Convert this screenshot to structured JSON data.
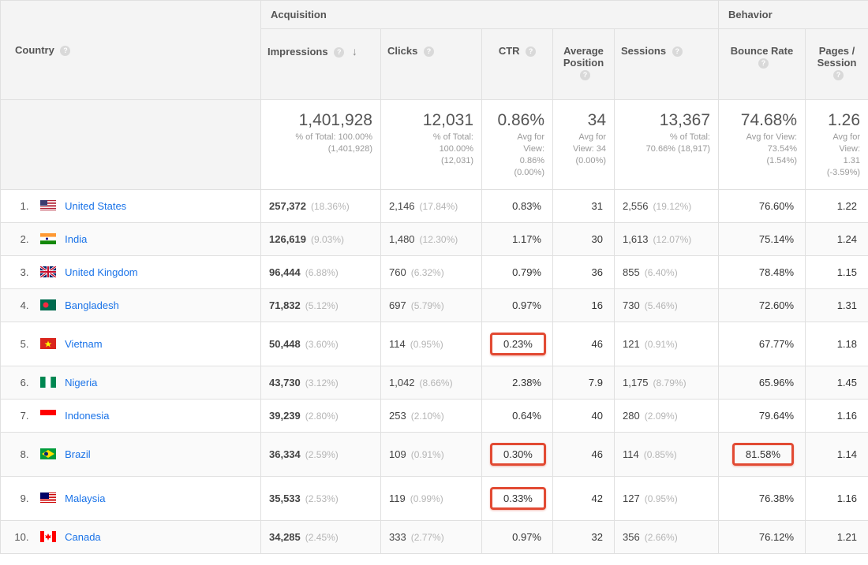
{
  "headers": {
    "country": "Country",
    "groups": {
      "acquisition": "Acquisition",
      "behavior": "Behavior"
    },
    "cols": {
      "impressions": "Impressions",
      "clicks": "Clicks",
      "ctr": "CTR",
      "avg_position": "Average Position",
      "sessions": "Sessions",
      "bounce_rate": "Bounce Rate",
      "pages_session": "Pages / Session"
    },
    "help_glyph": "?",
    "sort_arrow": "↓"
  },
  "summary": {
    "impressions": {
      "value": "1,401,928",
      "sub1": "% of Total: 100.00%",
      "sub2": "(1,401,928)"
    },
    "clicks": {
      "value": "12,031",
      "sub1": "% of Total:",
      "sub2": "100.00%",
      "sub3": "(12,031)"
    },
    "ctr": {
      "value": "0.86%",
      "sub1": "Avg for",
      "sub2": "View:",
      "sub3": "0.86%",
      "sub4": "(0.00%)"
    },
    "avg_pos": {
      "value": "34",
      "sub1": "Avg for",
      "sub2": "View: 34",
      "sub3": "(0.00%)"
    },
    "sessions": {
      "value": "13,367",
      "sub1": "% of Total:",
      "sub2": "70.66% (18,917)"
    },
    "bounce": {
      "value": "74.68%",
      "sub1": "Avg for View:",
      "sub2": "73.54%",
      "sub3": "(1.54%)"
    },
    "pages": {
      "value": "1.26",
      "sub1": "Avg for",
      "sub2": "View:",
      "sub3": "1.31",
      "sub4": "(-3.59%)"
    }
  },
  "rows": [
    {
      "n": "1.",
      "country": "United States",
      "impressions": "257,372",
      "imp_pct": "(18.36%)",
      "clicks": "2,146",
      "clk_pct": "(17.84%)",
      "ctr": "0.83%",
      "ctr_hi": false,
      "avg": "31",
      "sessions": "2,556",
      "sess_pct": "(19.12%)",
      "bounce": "76.60%",
      "bounce_hi": false,
      "pages": "1.22"
    },
    {
      "n": "2.",
      "country": "India",
      "impressions": "126,619",
      "imp_pct": "(9.03%)",
      "clicks": "1,480",
      "clk_pct": "(12.30%)",
      "ctr": "1.17%",
      "ctr_hi": false,
      "avg": "30",
      "sessions": "1,613",
      "sess_pct": "(12.07%)",
      "bounce": "75.14%",
      "bounce_hi": false,
      "pages": "1.24"
    },
    {
      "n": "3.",
      "country": "United Kingdom",
      "impressions": "96,444",
      "imp_pct": "(6.88%)",
      "clicks": "760",
      "clk_pct": "(6.32%)",
      "ctr": "0.79%",
      "ctr_hi": false,
      "avg": "36",
      "sessions": "855",
      "sess_pct": "(6.40%)",
      "bounce": "78.48%",
      "bounce_hi": false,
      "pages": "1.15"
    },
    {
      "n": "4.",
      "country": "Bangladesh",
      "impressions": "71,832",
      "imp_pct": "(5.12%)",
      "clicks": "697",
      "clk_pct": "(5.79%)",
      "ctr": "0.97%",
      "ctr_hi": false,
      "avg": "16",
      "sessions": "730",
      "sess_pct": "(5.46%)",
      "bounce": "72.60%",
      "bounce_hi": false,
      "pages": "1.31"
    },
    {
      "n": "5.",
      "country": "Vietnam",
      "impressions": "50,448",
      "imp_pct": "(3.60%)",
      "clicks": "114",
      "clk_pct": "(0.95%)",
      "ctr": "0.23%",
      "ctr_hi": true,
      "avg": "46",
      "sessions": "121",
      "sess_pct": "(0.91%)",
      "bounce": "67.77%",
      "bounce_hi": false,
      "pages": "1.18"
    },
    {
      "n": "6.",
      "country": "Nigeria",
      "impressions": "43,730",
      "imp_pct": "(3.12%)",
      "clicks": "1,042",
      "clk_pct": "(8.66%)",
      "ctr": "2.38%",
      "ctr_hi": false,
      "avg": "7.9",
      "sessions": "1,175",
      "sess_pct": "(8.79%)",
      "bounce": "65.96%",
      "bounce_hi": false,
      "pages": "1.45"
    },
    {
      "n": "7.",
      "country": "Indonesia",
      "impressions": "39,239",
      "imp_pct": "(2.80%)",
      "clicks": "253",
      "clk_pct": "(2.10%)",
      "ctr": "0.64%",
      "ctr_hi": false,
      "avg": "40",
      "sessions": "280",
      "sess_pct": "(2.09%)",
      "bounce": "79.64%",
      "bounce_hi": false,
      "pages": "1.16"
    },
    {
      "n": "8.",
      "country": "Brazil",
      "impressions": "36,334",
      "imp_pct": "(2.59%)",
      "clicks": "109",
      "clk_pct": "(0.91%)",
      "ctr": "0.30%",
      "ctr_hi": true,
      "avg": "46",
      "sessions": "114",
      "sess_pct": "(0.85%)",
      "bounce": "81.58%",
      "bounce_hi": true,
      "pages": "1.14"
    },
    {
      "n": "9.",
      "country": "Malaysia",
      "impressions": "35,533",
      "imp_pct": "(2.53%)",
      "clicks": "119",
      "clk_pct": "(0.99%)",
      "ctr": "0.33%",
      "ctr_hi": true,
      "avg": "42",
      "sessions": "127",
      "sess_pct": "(0.95%)",
      "bounce": "76.38%",
      "bounce_hi": false,
      "pages": "1.16"
    },
    {
      "n": "10.",
      "country": "Canada",
      "impressions": "34,285",
      "imp_pct": "(2.45%)",
      "clicks": "333",
      "clk_pct": "(2.77%)",
      "ctr": "0.97%",
      "ctr_hi": false,
      "avg": "32",
      "sessions": "356",
      "sess_pct": "(2.66%)",
      "bounce": "76.12%",
      "bounce_hi": false,
      "pages": "1.21"
    }
  ],
  "flags": {
    "United States": [
      [
        "#b22234",
        0,
        1
      ],
      [
        "#ffffff",
        1,
        1
      ],
      [
        "#b22234",
        2,
        1
      ],
      [
        "#ffffff",
        3,
        1
      ],
      [
        "#b22234",
        4,
        1
      ],
      [
        "#ffffff",
        5,
        1
      ],
      [
        "#b22234",
        6,
        1
      ],
      [
        "#ffffff",
        7,
        1
      ],
      [
        "#b22234",
        8,
        1
      ],
      [
        "#ffffff",
        9,
        1
      ],
      [
        "#b22234",
        10,
        1
      ],
      [
        "#ffffff",
        11,
        1
      ],
      [
        "#b22234",
        12,
        1
      ],
      [
        "#3c3b6e",
        0,
        7,
        0,
        9
      ]
    ],
    "India": [
      [
        "#ff9933",
        0,
        4.7
      ],
      [
        "#ffffff",
        4.7,
        4.6
      ],
      [
        "#138808",
        9.3,
        4.7
      ],
      [
        "#000080",
        5.5,
        3,
        8.5,
        3,
        "circle"
      ]
    ],
    "United Kingdom": [
      [
        "#012169",
        0,
        14
      ],
      [
        "#ffffff",
        5.5,
        3
      ],
      [
        "#c8102e",
        6.2,
        1.6
      ],
      [
        "#ffffff",
        0,
        14,
        8.5,
        3,
        "v"
      ],
      [
        "#c8102e",
        0,
        14,
        9.2,
        1.6,
        "v"
      ]
    ],
    "Bangladesh": [
      [
        "#006a4e",
        0,
        14
      ],
      [
        "#f42a41",
        3.5,
        7,
        7,
        7,
        "circle"
      ]
    ],
    "Vietnam": [
      [
        "#da251d",
        0,
        14
      ],
      [
        "#ffff00",
        5,
        5,
        7.5,
        5,
        "star"
      ]
    ],
    "Nigeria": [
      [
        "#008751",
        0,
        14,
        0,
        6.7,
        "v"
      ],
      [
        "#ffffff",
        0,
        14,
        6.7,
        6.6,
        "v"
      ],
      [
        "#008751",
        0,
        14,
        13.3,
        6.7,
        "v"
      ]
    ],
    "Indonesia": [
      [
        "#ff0000",
        0,
        7
      ],
      [
        "#ffffff",
        7,
        7
      ]
    ],
    "Brazil": [
      [
        "#009c3b",
        0,
        14
      ],
      [
        "#ffdf00",
        2,
        10,
        3,
        14,
        "diamond"
      ],
      [
        "#002776",
        4.5,
        5,
        7.5,
        5,
        "circle"
      ]
    ],
    "Malaysia": [
      [
        "#cc0001",
        0,
        1
      ],
      [
        "#ffffff",
        1,
        1
      ],
      [
        "#cc0001",
        2,
        1
      ],
      [
        "#ffffff",
        3,
        1
      ],
      [
        "#cc0001",
        4,
        1
      ],
      [
        "#ffffff",
        5,
        1
      ],
      [
        "#cc0001",
        6,
        1
      ],
      [
        "#ffffff",
        7,
        1
      ],
      [
        "#cc0001",
        8,
        1
      ],
      [
        "#ffffff",
        9,
        1
      ],
      [
        "#cc0001",
        10,
        1
      ],
      [
        "#ffffff",
        11,
        1
      ],
      [
        "#cc0001",
        12,
        1
      ],
      [
        "#ffffff",
        13,
        1
      ],
      [
        "#010066",
        0,
        8,
        0,
        11
      ]
    ],
    "Canada": [
      [
        "#ff0000",
        0,
        14,
        0,
        5,
        "v"
      ],
      [
        "#ffffff",
        0,
        14,
        5,
        10,
        "v"
      ],
      [
        "#ff0000",
        0,
        14,
        15,
        5,
        "v"
      ],
      [
        "#ff0000",
        3,
        8,
        7,
        6,
        "maple"
      ]
    ]
  },
  "colors": {
    "border": "#e0e0e0",
    "header_bg": "#f4f4f4",
    "text": "#333333",
    "muted": "#b5b5b5",
    "link": "#1a73e8",
    "highlight": "#e24a33"
  }
}
